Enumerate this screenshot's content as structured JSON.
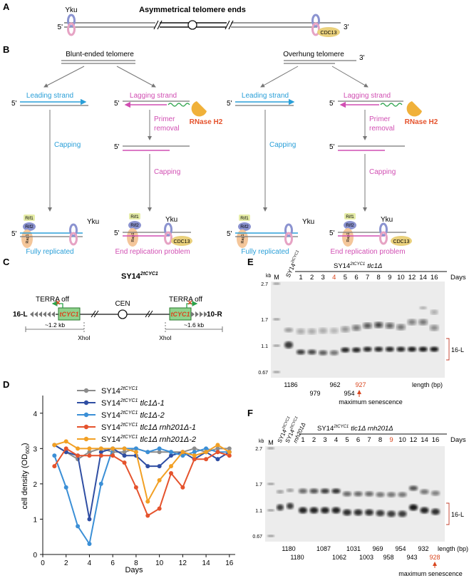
{
  "panels": {
    "A": {
      "letter": "A",
      "title": "Asymmetrical telomere ends",
      "yku": "Yku",
      "cdc13": "CDC13",
      "five_prime": "5'",
      "three_prime": "3'"
    },
    "B": {
      "letter": "B",
      "left": {
        "title": "Blunt-ended telomere",
        "leading": "Leading strand",
        "lagging": "Lagging strand",
        "rnase": "RNase H2",
        "primer": [
          "Primer",
          "removal"
        ],
        "capping": "Capping",
        "fully": "Fully replicated",
        "endrep": "End replication problem"
      },
      "right": {
        "title": "Overhung telomere",
        "leading": "Leading strand",
        "lagging": "Lagging strand",
        "rnase": "RNase H2",
        "primer": [
          "Primer",
          "removal"
        ],
        "capping": "Capping",
        "fully": "Fully replicated",
        "endrep": "End replication problem"
      },
      "rif1": "Rif1",
      "rif2": "Rif2",
      "rap1": "Rap1",
      "yku": "Yku",
      "cdc13": "CDC13",
      "five_prime": "5'",
      "three_prime": "3'"
    },
    "C": {
      "letter": "C",
      "title_main": "SY14",
      "title_sup": "2tCYC1",
      "terra_off": "TERRA off",
      "tcyc1": "tCYC1",
      "cen": "CEN",
      "left_arm": "16-L",
      "right_arm": "10-R",
      "dist_left": "~1.2 kb",
      "dist_right": "~1.6 kb",
      "xhoi": "XhoI"
    },
    "D": {
      "letter": "D",
      "ylabel_main": "cell density (OD",
      "ylabel_sub": "600",
      "ylabel_end": ")",
      "xlabel": "Days"
    },
    "E": {
      "letter": "E",
      "kb": "kb",
      "markers": [
        "2.7",
        "1.7",
        "1.1",
        "0.67"
      ],
      "lane_m": "M",
      "lane_ctrl_main": "SY14",
      "lane_ctrl_sup": "2tCYC1",
      "header_main": "SY14",
      "header_sup": "2tCYC1",
      "header_genotype": "tlc1Δ",
      "days_label": "Days",
      "days": [
        "1",
        "2",
        "3",
        "4",
        "5",
        "6",
        "7",
        "8",
        "9",
        "10",
        "12",
        "14",
        "16"
      ],
      "highlight_day": "4",
      "band_label": "16-L",
      "lengths_row1": [
        "1186",
        "962",
        "927"
      ],
      "lengths_row2": [
        "979",
        "954"
      ],
      "length_label": "length  (bp)",
      "max_senescence": "maximum senescence"
    },
    "F": {
      "letter": "F",
      "kb": "kb",
      "markers": [
        "2.7",
        "1.7",
        "1.1",
        "0.67"
      ],
      "lane_m": "M",
      "lane_ctrl1_main": "SY14",
      "lane_ctrl1_sup": "2tCYC1",
      "lane_ctrl2_main": "SY14",
      "lane_ctrl2_sup": "2tCYC1",
      "lane_ctrl2_geno": "rnh201Δ",
      "header_main": "SY14",
      "header_sup": "2tCYC1",
      "header_genotype": "tlc1Δ rnh201Δ",
      "days_label": "Days",
      "days": [
        "1",
        "2",
        "3",
        "4",
        "5",
        "6",
        "7",
        "8",
        "9",
        "10",
        "12",
        "14",
        "16"
      ],
      "highlight_day": "9",
      "band_label": "16-L",
      "lengths_row1": [
        "1180",
        "1087",
        "1031",
        "969",
        "954",
        "932"
      ],
      "lengths_row2": [
        "1180",
        "1062",
        "1003",
        "958",
        "943",
        "928"
      ],
      "length_label": "length  (bp)",
      "max_senescence": "maximum senescence"
    }
  },
  "chart_data": {
    "type": "line",
    "title": "",
    "xlabel": "Days",
    "ylabel": "cell density (OD600)",
    "xlim": [
      0,
      16.5
    ],
    "ylim": [
      0,
      4.5
    ],
    "xticks": [
      0,
      2,
      4,
      6,
      8,
      10,
      12,
      14,
      16
    ],
    "yticks": [
      0,
      1,
      2,
      3,
      4
    ],
    "legend_position": "top-center",
    "series": [
      {
        "name_main": "SY14",
        "name_sup": "2tCYC1",
        "name_geno": "",
        "color": "#8c8c8c",
        "x": [
          1,
          2,
          3,
          4,
          5,
          6,
          7,
          8,
          9,
          10,
          11,
          12,
          13,
          14,
          15,
          16
        ],
        "y": [
          3.1,
          2.9,
          2.7,
          2.9,
          3.0,
          2.9,
          2.9,
          3.0,
          2.9,
          2.9,
          2.9,
          2.9,
          3.0,
          2.9,
          3.0,
          3.0
        ]
      },
      {
        "name_main": "SY14",
        "name_sup": "2tCYC1",
        "name_geno": "tlc1Δ-1",
        "color": "#2f4ea3",
        "x": [
          1,
          2,
          3,
          4,
          5,
          6,
          7,
          8,
          9,
          10,
          11,
          12,
          13,
          14,
          15,
          16
        ],
        "y": [
          3.1,
          2.9,
          2.8,
          1.0,
          2.9,
          3.0,
          2.8,
          2.8,
          2.5,
          2.5,
          2.8,
          2.9,
          2.7,
          2.9,
          2.7,
          2.9
        ]
      },
      {
        "name_main": "SY14",
        "name_sup": "2tCYC1",
        "name_geno": "tlc1Δ-2",
        "color": "#3b8fd6",
        "x": [
          1,
          2,
          3,
          4,
          5,
          6,
          7,
          8,
          9,
          10,
          11,
          12,
          13,
          14,
          15,
          16
        ],
        "y": [
          2.8,
          1.9,
          0.8,
          0.3,
          2.0,
          3.0,
          3.0,
          3.0,
          2.9,
          3.0,
          2.9,
          2.8,
          2.9,
          3.0,
          2.9,
          2.9
        ]
      },
      {
        "name_main": "SY14",
        "name_sup": "2tCYC1",
        "name_geno": "tlc1Δ rnh201Δ-1",
        "color": "#e5532d",
        "x": [
          1,
          2,
          3,
          4,
          5,
          6,
          7,
          8,
          9,
          10,
          11,
          12,
          13,
          14,
          15,
          16
        ],
        "y": [
          2.5,
          3.0,
          2.8,
          2.8,
          2.8,
          2.8,
          2.6,
          1.9,
          1.1,
          1.3,
          2.3,
          1.9,
          2.7,
          2.7,
          2.9,
          2.8
        ]
      },
      {
        "name_main": "SY14",
        "name_sup": "2tCYC1",
        "name_geno": "tlc1Δ rnh201Δ-2",
        "color": "#f2a024",
        "x": [
          1,
          2,
          3,
          4,
          5,
          6,
          7,
          8,
          9,
          10,
          11,
          12,
          13,
          14,
          15,
          16
        ],
        "y": [
          3.1,
          3.2,
          3.0,
          3.0,
          3.0,
          3.0,
          3.0,
          2.9,
          1.5,
          2.1,
          2.5,
          2.9,
          2.8,
          2.9,
          3.1,
          2.9
        ]
      }
    ]
  }
}
